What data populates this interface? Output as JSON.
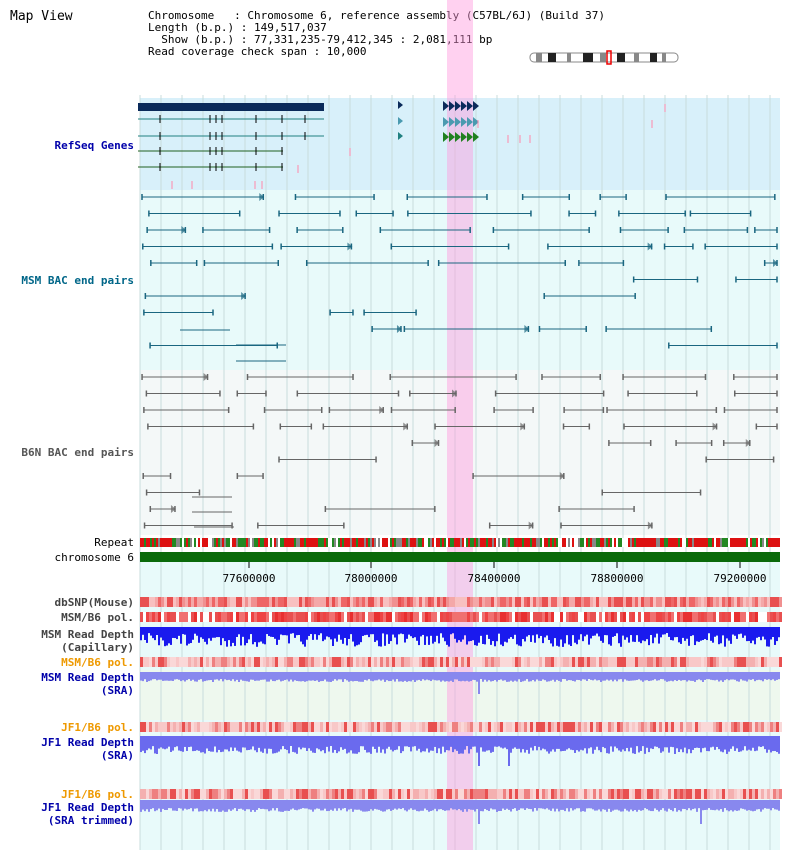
{
  "window": {
    "title": "Map View"
  },
  "info": {
    "line1": "Chromosome   : Chromosome 6, reference assembly (C57BL/6J) (Build 37)",
    "line2": "Length (b.p.) : 149,517,037",
    "line3": "  Show (b.p.) : 77,331,235-79,412,345 : 2,081,111 bp",
    "line4": "Read coverage check span : 10,000"
  },
  "tracks": {
    "refseq": "RefSeq Genes",
    "msm_bac": "MSM BAC end pairs",
    "b6n_bac": "B6N BAC end pairs",
    "repeat": "Repeat",
    "chromosome": "chromosome 6",
    "dbsnp": "dbSNP(Mouse)",
    "msm_b6_pol_1": "MSM/B6 pol.",
    "msm_depth_cap_1": "MSM Read Depth",
    "msm_depth_cap_2": "(Capillary)",
    "msm_b6_pol_2": "MSM/B6 pol.",
    "msm_depth_sra_1": "MSM Read Depth",
    "msm_depth_sra_2": "(SRA)",
    "jf1_b6_pol_1": "JF1/B6 pol.",
    "jf1_depth_sra_1": "JF1 Read Depth",
    "jf1_depth_sra_2": "(SRA)",
    "jf1_b6_pol_2": "JF1/B6 pol.",
    "jf1_depth_trim_1": "JF1 Read Depth",
    "jf1_depth_trim_2": "(SRA trimmed)"
  },
  "axis": {
    "ticks": [
      "77600000",
      "78000000",
      "78400000",
      "78800000",
      "79200000"
    ],
    "range": [
      77331235,
      79412345
    ]
  },
  "colors": {
    "refseq_label": "#0000aa",
    "msm_label": "#006688",
    "b6n_label": "#555555",
    "orange_label": "#ee9900",
    "blue_label": "#0000aa",
    "highlight": "#ff99dd"
  }
}
